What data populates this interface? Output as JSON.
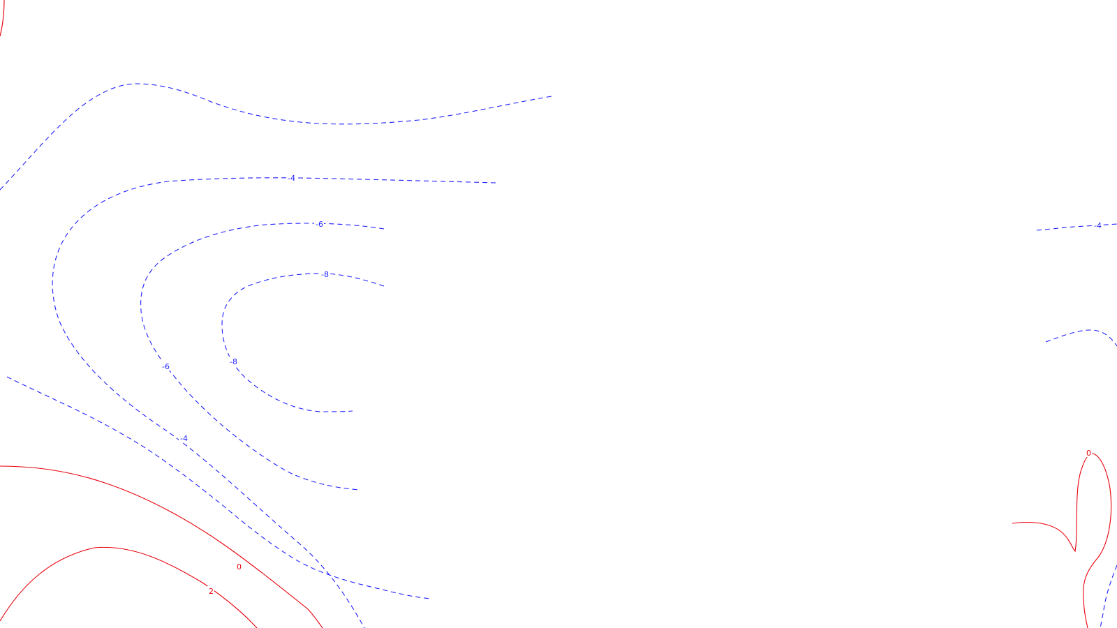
{
  "map": {
    "type": "contour",
    "colors": {
      "background": "#ffffff",
      "negative_contour": "#1f1fff",
      "positive_contour": "#e8000b"
    },
    "line_styles": {
      "negative": "dashed",
      "positive": "solid"
    },
    "labels": [
      {
        "id": "neg4-top",
        "text": "-4",
        "kind": "neg"
      },
      {
        "id": "neg6-top",
        "text": "-6",
        "kind": "neg"
      },
      {
        "id": "neg8-top",
        "text": "-8",
        "kind": "neg"
      },
      {
        "id": "neg6-left",
        "text": "-6",
        "kind": "neg"
      },
      {
        "id": "neg8-left",
        "text": "-8",
        "kind": "neg"
      },
      {
        "id": "neg4-left",
        "text": "-4",
        "kind": "neg"
      },
      {
        "id": "neg4-right",
        "text": "-4",
        "kind": "neg"
      },
      {
        "id": "zero-bottom",
        "text": "0",
        "kind": "pos"
      },
      {
        "id": "two-bottom",
        "text": "2",
        "kind": "pos"
      },
      {
        "id": "zero-right",
        "text": "0",
        "kind": "pos"
      }
    ]
  }
}
